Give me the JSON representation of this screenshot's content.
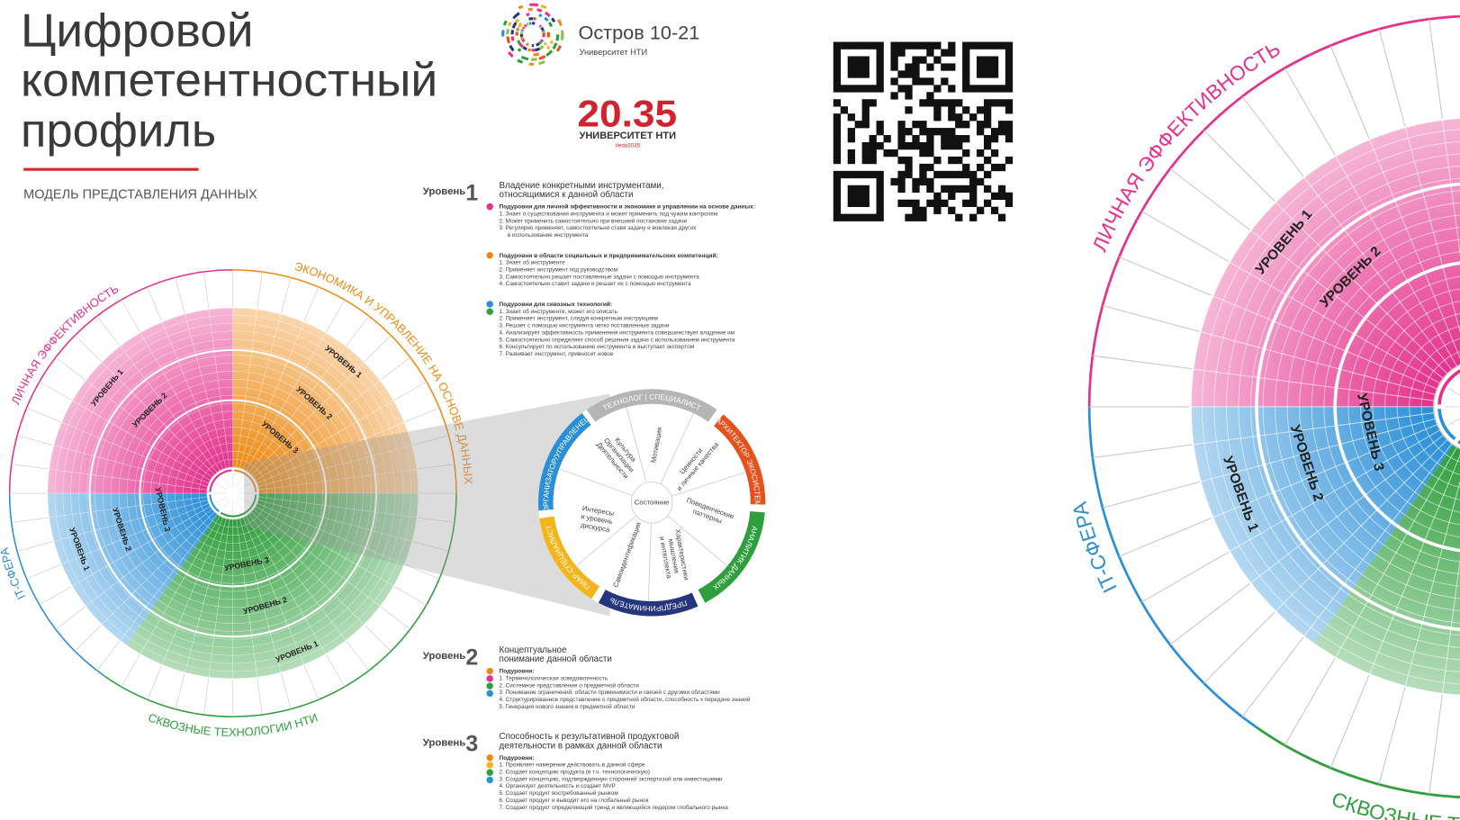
{
  "header": {
    "title": [
      "Цифровой",
      "компетентностный",
      "профиль"
    ],
    "subtitle": "МОДЕЛЬ ПРЕДСТАВЛЕНИЯ ДАННЫХ"
  },
  "logos": {
    "ostrov": "Остров 10-21",
    "ostrov_sub": "Университет НТИ",
    "nti": "20.35",
    "nti_sub": "УНИВЕРСИТЕТ НТИ",
    "nti_tag": "#edu2035"
  },
  "wheel": {
    "sectors": [
      {
        "name": "ЛИЧНАЯ ЭФФЕКТИВНОСТЬ",
        "color": "#e5318c",
        "levels": [
          "УРОВЕНЬ 1",
          "УРОВЕНЬ 2"
        ]
      },
      {
        "name": "ЭКОНОМИКА И УПРАВЛЕНИЕ НА ОСНОВЕ ДАННЫХ",
        "color": "#ee8a14",
        "levels": [
          "УРОВЕНЬ 1",
          "УРОВЕНЬ 2",
          "УРОВЕНЬ 3"
        ]
      },
      {
        "name": "IT-СФЕРА",
        "color": "#2b8fd8",
        "levels": [
          "УРОВЕНЬ 1",
          "УРОВЕНЬ 2",
          "УРОВЕНЬ 3"
        ]
      },
      {
        "name": "СКВОЗНЫЕ ТЕХНОЛОГИИ НТИ",
        "color": "#2f9e3c",
        "levels": [
          "УРОВЕНЬ 1",
          "УРОВЕНЬ 2",
          "УРОВЕНЬ 3"
        ]
      }
    ]
  },
  "detail": {
    "roles": [
      {
        "name": "ТЕХНОЛОГ | СПЕЦИАЛИСТ",
        "color": "#b5b5b5"
      },
      {
        "name": "АРХИТЕКТОР ЭКОСИСТЕМ",
        "color": "#e8511c"
      },
      {
        "name": "АНАЛИТИК ДАННЫХ",
        "color": "#2f9e3c"
      },
      {
        "name": "ПРЕДПРИНИМАТЕЛЬ",
        "color": "#26367e"
      },
      {
        "name": "ПИАР-СПЕЦИАЛИСТ",
        "color": "#f3b51a"
      },
      {
        "name": "ОРГАНИЗАТОР/УПРАВЛЕНЕЦ",
        "color": "#2b8fd8"
      }
    ],
    "aspects": [
      [
        "Культура",
        "Организации",
        "Деятельности"
      ],
      [
        "Мотивация"
      ],
      [
        "Ценности",
        "и личные качества"
      ],
      [
        "Поведенческие",
        "паттерны"
      ],
      [
        "Характеристики",
        "мышления",
        "и интеллекта"
      ],
      [
        "Самоидентификация"
      ],
      [
        "Интересы",
        "и уровень",
        "дискурса"
      ]
    ],
    "center": "Состояние"
  },
  "levels": [
    {
      "label": "Уровень",
      "number": "1",
      "heading": [
        "Владение конкретными инструментами,",
        "относящимися к данной области"
      ],
      "groups": [
        {
          "title": "Подуровни для личной эффективности и экономике и управлении на основе данных:",
          "items": [
            "1. Знает о существовании инструмента и может применить под чужим контролем",
            "2. Может применить самостоятельно при внешней постановке задачи",
            "3. Регулярно применяет, самостоятельно ставя задачу и вовлекая других",
            "в использование инструмента"
          ]
        },
        {
          "title": "Подуровни в области социальных и предпринимательских компетенций:",
          "items": [
            "1. Знает об инструменте",
            "2. Применяет инструмент под руководством",
            "3. Самостоятельно решает поставленные задачи с помощью инструмента",
            "4. Самостоятельно ставит задачи и решает их с помощью инструмента"
          ]
        },
        {
          "title": "Подуровни для сквозных технологий:",
          "items": [
            "1. Знает об инструменте, может его описать",
            "2. Применяет инструмент, следуя конкретным инструкциям",
            "3. Решает с помощью инструмента четко поставленные задачи",
            "4. Анализирует эффективность применения инструмента совершенствует владение им",
            "5. Самостоятельно определяет способ решения задачи с использованием инструмента",
            "6. Консультирует по использованию инструмента и выступает экспертом",
            "7. Развивает инструмент, привносит новое"
          ]
        }
      ]
    },
    {
      "label": "Уровень",
      "number": "2",
      "heading": [
        "Концептуальное",
        "понимание данной области"
      ],
      "groups": [
        {
          "title": "Подуровни:",
          "items": [
            "1. Терминологическая осведомленность",
            "2. Системное представление о предметной области",
            "3. Понимание ограничений, области применимости и связей с другими областями",
            "4. Структурированное представление о предметной области, способность к передаче знаний",
            "5. Генерация нового знания в предметной области"
          ]
        }
      ]
    },
    {
      "label": "Уровень",
      "number": "3",
      "heading": [
        "Способность к результативной продуктовой",
        "деятельности в рамках данной области"
      ],
      "groups": [
        {
          "title": "Подуровни:",
          "items": [
            "1. Проявляет намерение действовать в данной сфере",
            "2. Создает концепцию продукта (в т.ч. технологическую)",
            "3. Создает концепцию, подтвержденную сторонней экспертизой или инвестициями",
            "4. Организует деятельность и создает MVP",
            "5. Создает продукт востребованный рынком",
            "6. Создает продукт и выводит его на глобальный рынок",
            "7. Создает продукт определяющий тренд и являющийся лидером глобального рынка"
          ]
        }
      ]
    }
  ]
}
